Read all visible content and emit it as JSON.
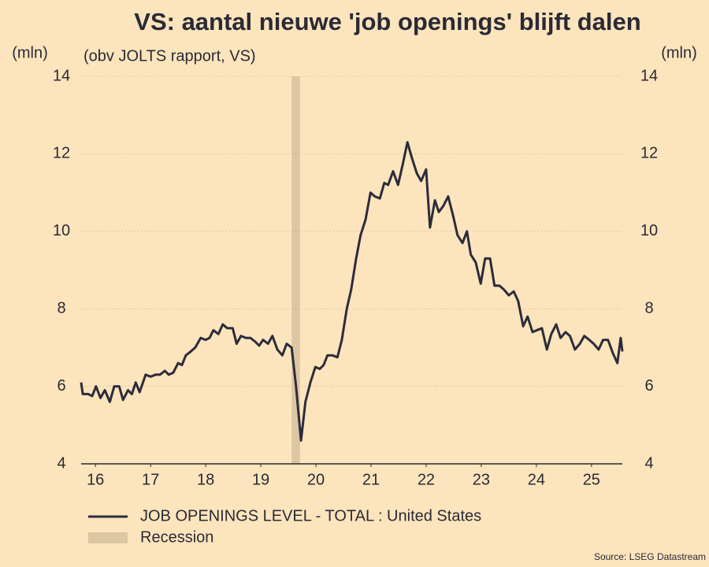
{
  "chart_data": {
    "type": "line",
    "title": "VS: aantal nieuwe 'job openings' blijft dalen",
    "subtitle": "(obv JOLTS rapport, VS)",
    "y_label": "(mln)",
    "y2_label": "(mln)",
    "source": "Source: LSEG Datastream",
    "xlim": [
      16.24,
      26.06
    ],
    "xticks": [
      {
        "value": 16.5,
        "label": "16"
      },
      {
        "value": 17.5,
        "label": "17"
      },
      {
        "value": 18.5,
        "label": "18"
      },
      {
        "value": 19.5,
        "label": "19"
      },
      {
        "value": 20.5,
        "label": "20"
      },
      {
        "value": 21.5,
        "label": "21"
      },
      {
        "value": 22.5,
        "label": "22"
      },
      {
        "value": 23.5,
        "label": "23"
      },
      {
        "value": 24.5,
        "label": "24"
      },
      {
        "value": 25.5,
        "label": "25"
      }
    ],
    "ylim": [
      4,
      14
    ],
    "yticks": [
      4,
      6,
      8,
      10,
      12,
      14
    ],
    "y2lim": [
      4,
      14
    ],
    "y2ticks": [
      4,
      6,
      8,
      10,
      12,
      14
    ],
    "grid": true,
    "background": "#fce4bc",
    "bands": [
      {
        "name": "Recession",
        "color": "#dcc7a2",
        "x": [
          20.06,
          20.21
        ]
      }
    ],
    "x": [
      16.24,
      16.27,
      16.37,
      16.44,
      16.51,
      16.59,
      16.67,
      16.76,
      16.84,
      16.93,
      17.0,
      17.09,
      17.16,
      17.23,
      17.3,
      17.41,
      17.5,
      17.59,
      17.67,
      17.76,
      17.83,
      17.91,
      18.0,
      18.07,
      18.14,
      18.23,
      18.31,
      18.41,
      18.5,
      18.57,
      18.64,
      18.73,
      18.81,
      18.89,
      18.99,
      19.06,
      19.14,
      19.23,
      19.31,
      19.4,
      19.47,
      19.54,
      19.63,
      19.71,
      19.8,
      19.89,
      19.97,
      20.06,
      20.14,
      20.23,
      20.31,
      20.4,
      20.49,
      20.57,
      20.64,
      20.71,
      20.8,
      20.89,
      20.97,
      21.06,
      21.14,
      21.23,
      21.31,
      21.4,
      21.49,
      21.57,
      21.66,
      21.74,
      21.81,
      21.9,
      21.99,
      22.07,
      22.16,
      22.24,
      22.33,
      22.41,
      22.5,
      22.57,
      22.66,
      22.73,
      22.81,
      22.9,
      22.99,
      23.07,
      23.16,
      23.24,
      23.31,
      23.4,
      23.49,
      23.57,
      23.66,
      23.74,
      23.83,
      23.91,
      24.0,
      24.09,
      24.17,
      24.26,
      24.34,
      24.43,
      24.51,
      24.6,
      24.69,
      24.77,
      24.86,
      24.94,
      25.03,
      25.11,
      25.2,
      25.29,
      25.37,
      25.46,
      25.54,
      25.63,
      25.71,
      25.8,
      25.89,
      25.97,
      26.03,
      26.06
    ],
    "series": [
      {
        "name": "JOB OPENINGS LEVEL - TOTAL : United States",
        "color": "#2c2c3c",
        "values": [
          6.1,
          5.8,
          5.8,
          5.75,
          6.0,
          5.7,
          5.9,
          5.6,
          6.0,
          6.0,
          5.65,
          5.9,
          5.8,
          6.1,
          5.85,
          6.3,
          6.25,
          6.3,
          6.3,
          6.4,
          6.3,
          6.35,
          6.6,
          6.55,
          6.8,
          6.9,
          7.0,
          7.25,
          7.2,
          7.25,
          7.45,
          7.35,
          7.6,
          7.5,
          7.5,
          7.1,
          7.3,
          7.25,
          7.25,
          7.15,
          7.05,
          7.2,
          7.1,
          7.3,
          6.95,
          6.8,
          7.1,
          7.0,
          6.0,
          4.6,
          5.6,
          6.1,
          6.5,
          6.45,
          6.55,
          6.8,
          6.8,
          6.75,
          7.2,
          8.0,
          8.5,
          9.3,
          9.9,
          10.3,
          11.0,
          10.9,
          10.85,
          11.25,
          11.2,
          11.55,
          11.2,
          11.7,
          12.3,
          11.9,
          11.5,
          11.3,
          11.6,
          10.1,
          10.8,
          10.5,
          10.65,
          10.9,
          10.4,
          9.9,
          9.7,
          10.0,
          9.4,
          9.2,
          8.65,
          9.3,
          9.3,
          8.6,
          8.6,
          8.5,
          8.35,
          8.45,
          8.2,
          7.55,
          7.8,
          7.4,
          7.45,
          7.5,
          6.95,
          7.35,
          7.6,
          7.25,
          7.4,
          7.3,
          6.95,
          7.1,
          7.3,
          7.2,
          7.1,
          6.95,
          7.2,
          7.2,
          6.85,
          6.6,
          7.25,
          6.9
        ]
      }
    ]
  }
}
